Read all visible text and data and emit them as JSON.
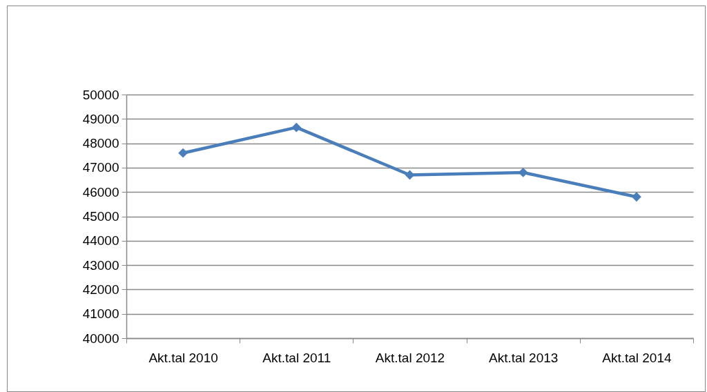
{
  "chart_data": {
    "type": "line",
    "categories": [
      "Akt.tal 2010",
      "Akt.tal 2011",
      "Akt.tal 2012",
      "Akt.tal 2013",
      "Akt.tal 2014"
    ],
    "series": [
      {
        "color": "#4a7ebb",
        "values": [
          47600,
          48650,
          46700,
          46800,
          45800
        ]
      }
    ],
    "ylim": [
      40000,
      50000
    ],
    "yticks": [
      40000,
      41000,
      42000,
      43000,
      44000,
      45000,
      46000,
      47000,
      48000,
      49000,
      50000
    ],
    "grid": "y",
    "legend": false,
    "marker": "diamond",
    "line_style": "solid"
  }
}
